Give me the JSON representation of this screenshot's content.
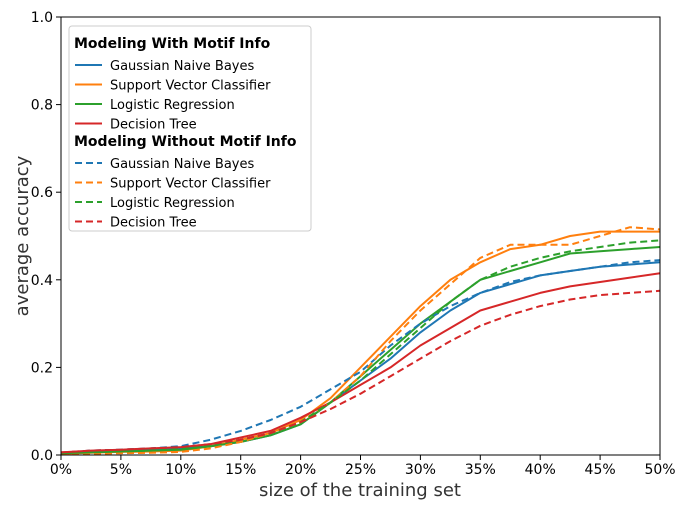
{
  "chart_data": {
    "type": "line",
    "xlabel": "size of the training set",
    "ylabel": "average accuracy",
    "x_tick_labels": [
      "0%",
      "5%",
      "10%",
      "15%",
      "20%",
      "25%",
      "30%",
      "35%",
      "40%",
      "45%",
      "50%"
    ],
    "y_tick_labels": [
      "0.0",
      "0.2",
      "0.4",
      "0.6",
      "0.8",
      "1.0"
    ],
    "xlim": [
      0,
      50
    ],
    "ylim": [
      0.0,
      1.0
    ],
    "grid": false,
    "legend_position": "top-left",
    "legend_groups": [
      {
        "title": "Modeling With Motif Info",
        "entries": [
          {
            "label": "Gaussian Naive Bayes",
            "color": "#1f77b4",
            "dash": "solid"
          },
          {
            "label": "Support Vector Classifier",
            "color": "#ff7f0e",
            "dash": "solid"
          },
          {
            "label": "Logistic Regression",
            "color": "#2ca02c",
            "dash": "solid"
          },
          {
            "label": "Decision Tree",
            "color": "#d62728",
            "dash": "solid"
          }
        ]
      },
      {
        "title": "Modeling Without Motif Info",
        "entries": [
          {
            "label": "Gaussian Naive Bayes",
            "color": "#1f77b4",
            "dash": "dashed"
          },
          {
            "label": "Support Vector Classifier",
            "color": "#ff7f0e",
            "dash": "dashed"
          },
          {
            "label": "Logistic Regression",
            "color": "#2ca02c",
            "dash": "dashed"
          },
          {
            "label": "Decision Tree",
            "color": "#d62728",
            "dash": "dashed"
          }
        ]
      }
    ],
    "x": [
      0,
      2.5,
      5,
      7.5,
      10,
      12.5,
      15,
      17.5,
      20,
      22.5,
      25,
      27.5,
      30,
      32.5,
      35,
      37.5,
      40,
      42.5,
      45,
      47.5,
      50
    ],
    "series": [
      {
        "name": "Gaussian Naive Bayes",
        "group": "Modeling With Motif Info",
        "color": "#1f77b4",
        "dash": "solid",
        "values": [
          0.005,
          0.008,
          0.01,
          0.012,
          0.015,
          0.02,
          0.03,
          0.045,
          0.07,
          0.12,
          0.17,
          0.22,
          0.28,
          0.33,
          0.37,
          0.39,
          0.41,
          0.42,
          0.43,
          0.435,
          0.44
        ]
      },
      {
        "name": "Support Vector Classifier",
        "group": "Modeling With Motif Info",
        "color": "#ff7f0e",
        "dash": "solid",
        "values": [
          0.003,
          0.005,
          0.007,
          0.008,
          0.01,
          0.02,
          0.035,
          0.05,
          0.08,
          0.13,
          0.2,
          0.27,
          0.34,
          0.4,
          0.44,
          0.47,
          0.48,
          0.5,
          0.51,
          0.51,
          0.51
        ]
      },
      {
        "name": "Logistic Regression",
        "group": "Modeling With Motif Info",
        "color": "#2ca02c",
        "dash": "solid",
        "values": [
          0.004,
          0.006,
          0.008,
          0.01,
          0.012,
          0.02,
          0.03,
          0.045,
          0.07,
          0.12,
          0.18,
          0.24,
          0.3,
          0.35,
          0.4,
          0.42,
          0.44,
          0.46,
          0.465,
          0.47,
          0.475
        ]
      },
      {
        "name": "Decision Tree",
        "group": "Modeling With Motif Info",
        "color": "#d62728",
        "dash": "solid",
        "values": [
          0.006,
          0.01,
          0.012,
          0.015,
          0.018,
          0.025,
          0.04,
          0.055,
          0.085,
          0.12,
          0.16,
          0.2,
          0.25,
          0.29,
          0.33,
          0.35,
          0.37,
          0.385,
          0.395,
          0.405,
          0.415
        ]
      },
      {
        "name": "Gaussian Naive Bayes",
        "group": "Modeling Without Motif Info",
        "color": "#1f77b4",
        "dash": "dashed",
        "values": [
          0.005,
          0.01,
          0.012,
          0.015,
          0.02,
          0.035,
          0.055,
          0.08,
          0.11,
          0.15,
          0.19,
          0.25,
          0.3,
          0.34,
          0.37,
          0.395,
          0.41,
          0.42,
          0.43,
          0.44,
          0.445
        ]
      },
      {
        "name": "Support Vector Classifier",
        "group": "Modeling Without Motif Info",
        "color": "#ff7f0e",
        "dash": "dashed",
        "values": [
          0.002,
          0.003,
          0.004,
          0.005,
          0.007,
          0.015,
          0.03,
          0.05,
          0.075,
          0.12,
          0.18,
          0.26,
          0.33,
          0.39,
          0.45,
          0.48,
          0.48,
          0.48,
          0.5,
          0.52,
          0.515
        ]
      },
      {
        "name": "Logistic Regression",
        "group": "Modeling Without Motif Info",
        "color": "#2ca02c",
        "dash": "dashed",
        "values": [
          0.004,
          0.006,
          0.008,
          0.01,
          0.013,
          0.022,
          0.035,
          0.05,
          0.075,
          0.12,
          0.17,
          0.23,
          0.29,
          0.35,
          0.4,
          0.43,
          0.45,
          0.465,
          0.475,
          0.485,
          0.49
        ]
      },
      {
        "name": "Decision Tree",
        "group": "Modeling Without Motif Info",
        "color": "#d62728",
        "dash": "dashed",
        "values": [
          0.006,
          0.01,
          0.012,
          0.015,
          0.018,
          0.025,
          0.035,
          0.05,
          0.075,
          0.105,
          0.14,
          0.18,
          0.22,
          0.26,
          0.295,
          0.32,
          0.34,
          0.355,
          0.365,
          0.37,
          0.375
        ]
      }
    ]
  }
}
